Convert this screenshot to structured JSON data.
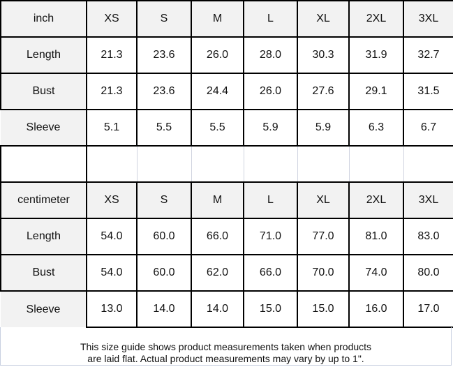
{
  "inch_table": {
    "unit": "inch",
    "sizes": [
      "XS",
      "S",
      "M",
      "L",
      "XL",
      "2XL",
      "3XL"
    ],
    "rows": [
      {
        "label": "Length",
        "values": [
          "21.3",
          "23.6",
          "26.0",
          "28.0",
          "30.3",
          "31.9",
          "32.7"
        ]
      },
      {
        "label": "Bust",
        "values": [
          "21.3",
          "23.6",
          "24.4",
          "26.0",
          "27.6",
          "29.1",
          "31.5"
        ]
      },
      {
        "label": "Sleeve",
        "values": [
          "5.1",
          "5.5",
          "5.5",
          "5.9",
          "5.9",
          "6.3",
          "6.7"
        ]
      }
    ]
  },
  "cm_table": {
    "unit": "centimeter",
    "sizes": [
      "XS",
      "S",
      "M",
      "L",
      "XL",
      "2XL",
      "3XL"
    ],
    "rows": [
      {
        "label": "Length",
        "values": [
          "54.0",
          "60.0",
          "66.0",
          "71.0",
          "77.0",
          "81.0",
          "83.0"
        ]
      },
      {
        "label": "Bust",
        "values": [
          "54.0",
          "60.0",
          "62.0",
          "66.0",
          "70.0",
          "74.0",
          "80.0"
        ]
      },
      {
        "label": "Sleeve",
        "values": [
          "13.0",
          "14.0",
          "14.0",
          "15.0",
          "15.0",
          "16.0",
          "17.0"
        ]
      }
    ]
  },
  "caption": {
    "line1": "This size guide shows product measurements taken when products",
    "line2": "are laid flat. Actual product measurements may vary by up to 1\"."
  }
}
